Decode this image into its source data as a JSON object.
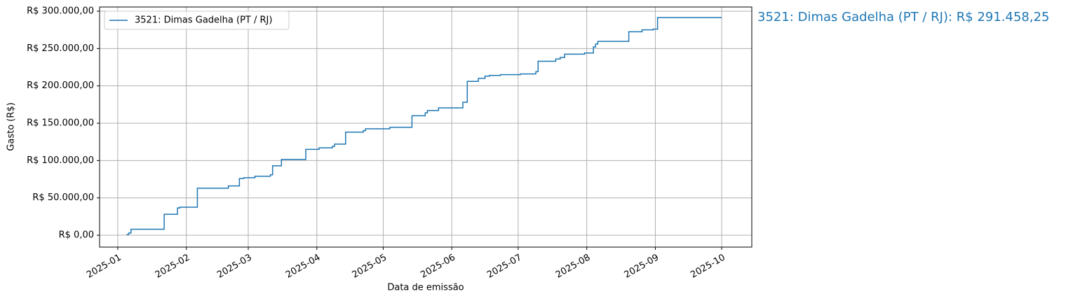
{
  "chart_data": {
    "type": "step",
    "annotation": "3521: Dimas Gadelha (PT / RJ): R$ 291.458,25",
    "xlabel": "Data de emissão",
    "ylabel": "Gasto (R$)",
    "x": [
      4,
      5,
      6,
      21,
      27,
      28,
      36,
      50,
      55,
      57,
      62,
      69,
      70,
      74,
      85,
      91,
      97,
      98,
      103,
      111,
      112,
      123,
      133,
      139,
      140,
      145,
      156,
      158,
      163,
      166,
      168,
      173,
      182,
      189,
      190,
      198,
      200,
      202,
      211,
      215,
      216,
      217,
      231,
      237,
      242,
      244,
      273
    ],
    "series": [
      {
        "name": "3521: Dimas Gadelha (PT / RJ)",
        "color": "#1f77b4",
        "values": [
          1000,
          3000,
          8000,
          28000,
          36500,
          37500,
          63000,
          66000,
          76000,
          77000,
          79000,
          81000,
          93000,
          101500,
          115000,
          117000,
          119000,
          122000,
          138000,
          140000,
          142500,
          144500,
          160000,
          164000,
          167000,
          170500,
          178000,
          206000,
          210000,
          213000,
          214000,
          215000,
          216000,
          219000,
          233000,
          236000,
          238000,
          242500,
          244000,
          252000,
          256000,
          259500,
          272500,
          275000,
          276000,
          291458.25,
          291458.25
        ]
      }
    ],
    "xlim": [
      -8.2,
      286.6
    ],
    "xticks": [
      {
        "value": 0,
        "label": "2025-01"
      },
      {
        "value": 31,
        "label": "2025-02"
      },
      {
        "value": 59,
        "label": "2025-03"
      },
      {
        "value": 90,
        "label": "2025-04"
      },
      {
        "value": 120,
        "label": "2025-05"
      },
      {
        "value": 151,
        "label": "2025-06"
      },
      {
        "value": 181,
        "label": "2025-07"
      },
      {
        "value": 212,
        "label": "2025-08"
      },
      {
        "value": 243,
        "label": "2025-09"
      },
      {
        "value": 273,
        "label": "2025-10"
      }
    ],
    "ylim": [
      -15900,
      305600
    ],
    "yticks": [
      {
        "value": 0,
        "label": "R$ 0,00"
      },
      {
        "value": 50000,
        "label": "R$ 50.000,00"
      },
      {
        "value": 100000,
        "label": "R$ 100.000,00"
      },
      {
        "value": 150000,
        "label": "R$ 150.000,00"
      },
      {
        "value": 200000,
        "label": "R$ 200.000,00"
      },
      {
        "value": 250000,
        "label": "R$ 250.000,00"
      },
      {
        "value": 300000,
        "label": "R$ 300.000,00"
      }
    ],
    "grid": true,
    "legend": "upper left"
  }
}
